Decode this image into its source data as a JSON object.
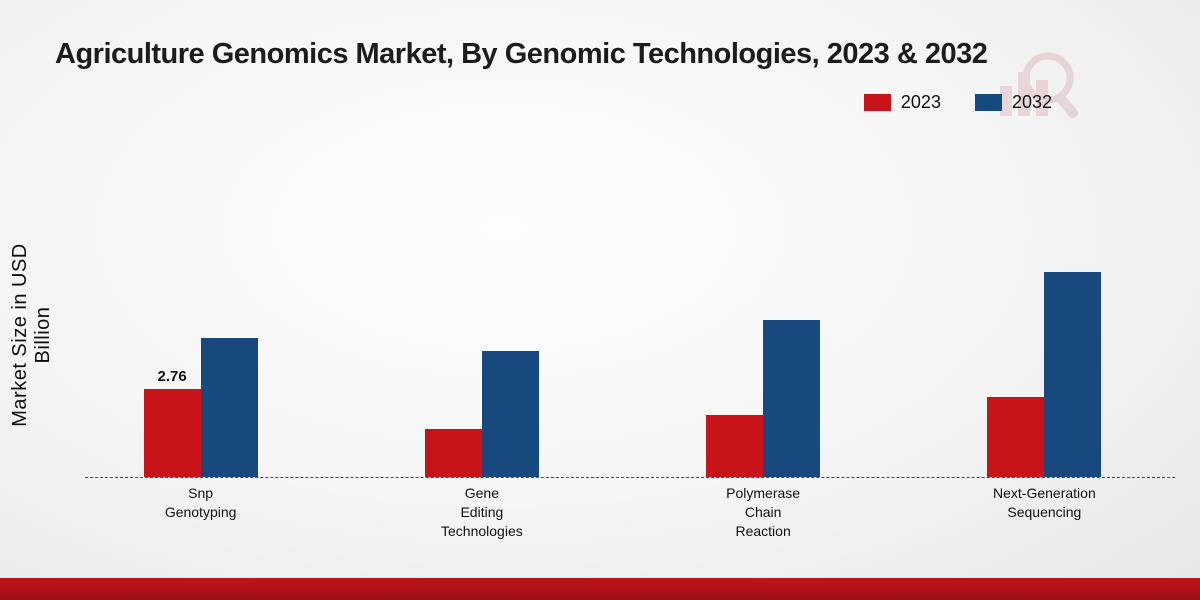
{
  "page": {
    "title": "Agriculture Genomics Market, By Genomic Technologies, 2023 & 2032"
  },
  "axis": {
    "ylabel": "Market Size in USD Billion"
  },
  "legend": {
    "items": [
      {
        "label": "2023",
        "color": "#c8131a"
      },
      {
        "label": "2032",
        "color": "#17497e"
      }
    ]
  },
  "chart_data": {
    "type": "bar",
    "title": "Agriculture Genomics Market, By Genomic Technologies, 2023 & 2032",
    "xlabel": "",
    "ylabel": "Market Size in USD Billion",
    "ylim": [
      0,
      10
    ],
    "grid": false,
    "legend_position": "top-right",
    "categories": [
      "Snp\nGenotyping",
      "Gene\nEditing\nTechnologies",
      "Polymerase\nChain\nReaction",
      "Next-Generation\nSequencing"
    ],
    "series": [
      {
        "name": "2023",
        "color": "#c8131a",
        "values": [
          2.76,
          1.5,
          1.95,
          2.5
        ]
      },
      {
        "name": "2032",
        "color": "#17497e",
        "values": [
          4.35,
          3.95,
          4.9,
          6.4
        ]
      }
    ],
    "annotations": [
      {
        "category_index": 0,
        "series": "2023",
        "text": "2.76"
      }
    ]
  }
}
